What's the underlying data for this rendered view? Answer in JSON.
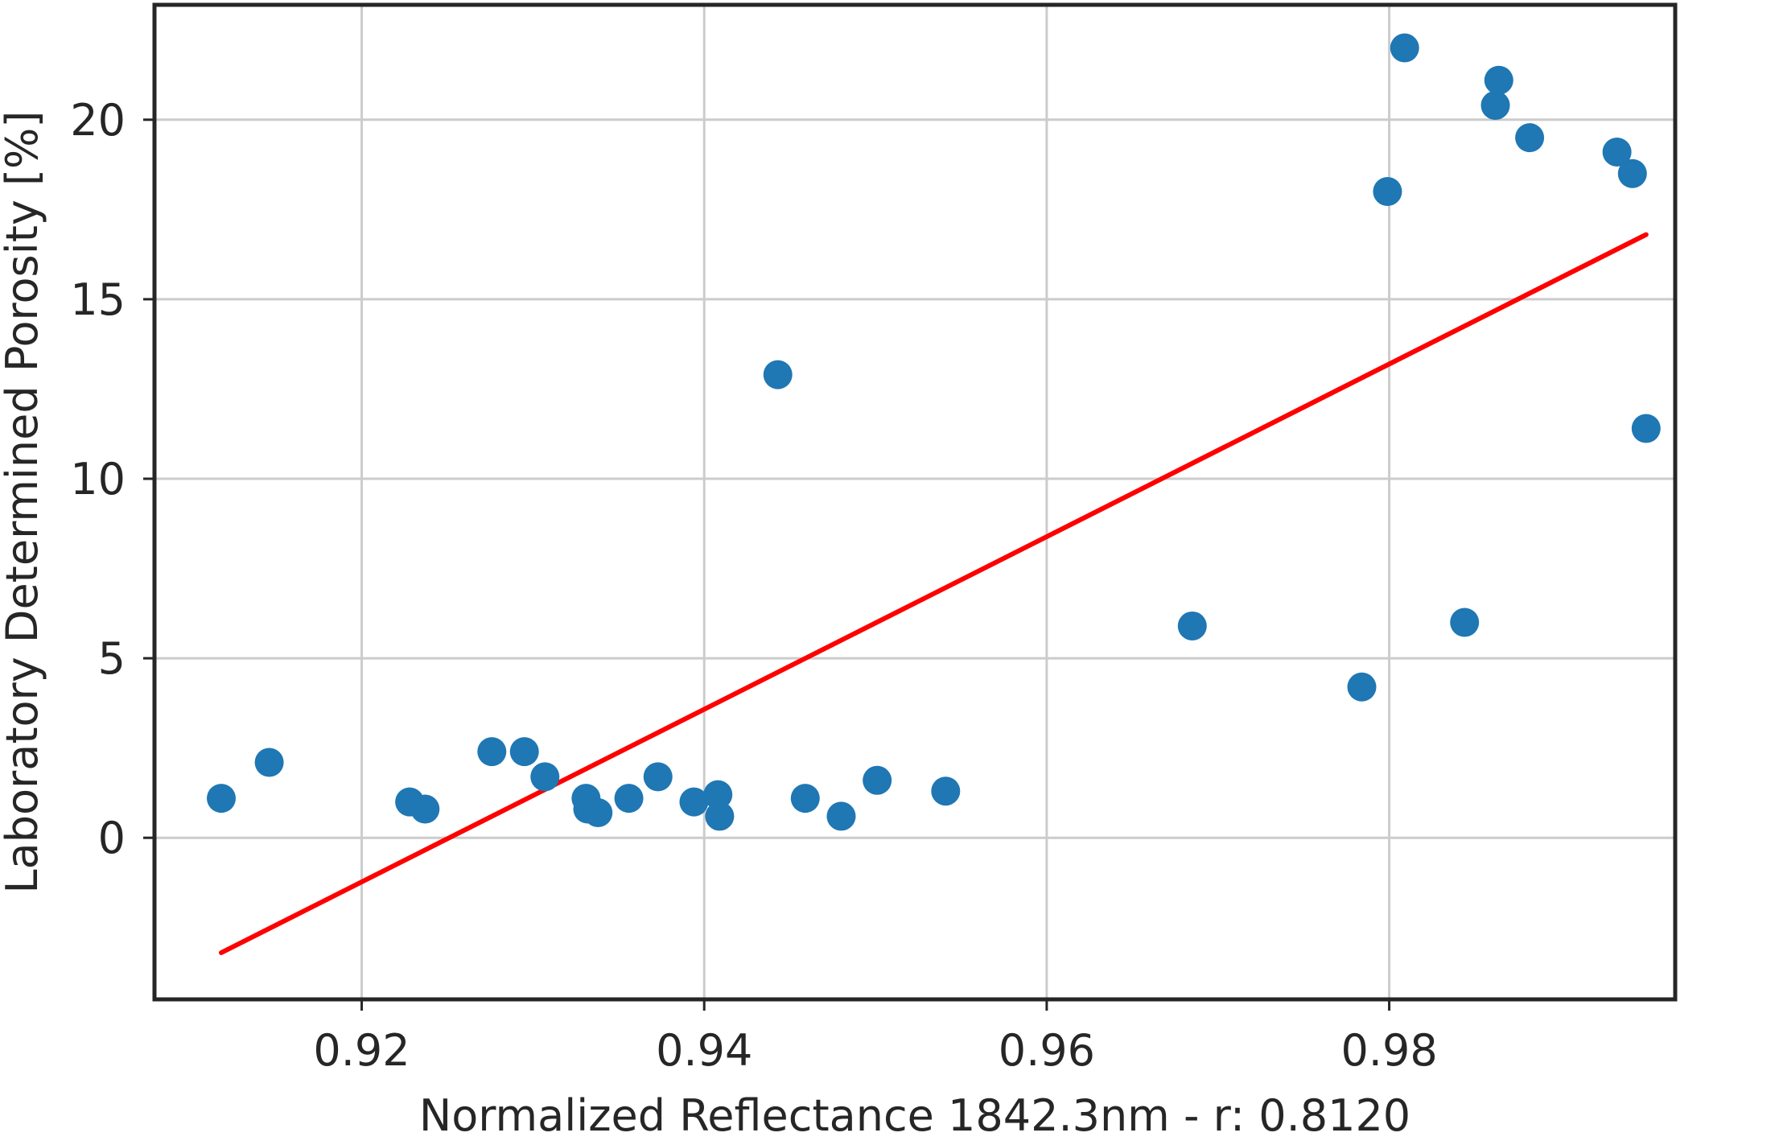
{
  "chart_data": {
    "type": "scatter",
    "title": "",
    "xlabel": "Normalized Reflectance 1842.3nm - r:   0.8120",
    "ylabel": "Laboratory Determined Porosity [%]",
    "xlim": [
      0.9079,
      0.9967
    ],
    "ylim": [
      -4.5,
      23.2
    ],
    "x_ticks": [
      0.92,
      0.94,
      0.96,
      0.98
    ],
    "x_tick_labels": [
      "0.92",
      "0.94",
      "0.96",
      "0.98"
    ],
    "y_ticks": [
      0,
      5,
      10,
      15,
      20
    ],
    "y_tick_labels": [
      "0",
      "5",
      "10",
      "15",
      "20"
    ],
    "grid": true,
    "legend": "none",
    "colors": {
      "points": "#1f77b4",
      "fit_line": "#ff0000",
      "grid": "#cccccc",
      "frame": "#262626"
    },
    "series": [
      {
        "kind": "scatter",
        "points": [
          {
            "x": 0.9118,
            "y": 1.1
          },
          {
            "x": 0.9146,
            "y": 2.1
          },
          {
            "x": 0.9228,
            "y": 1.0
          },
          {
            "x": 0.9237,
            "y": 0.8
          },
          {
            "x": 0.9276,
            "y": 2.4
          },
          {
            "x": 0.9295,
            "y": 2.4
          },
          {
            "x": 0.9307,
            "y": 1.7
          },
          {
            "x": 0.9331,
            "y": 1.1
          },
          {
            "x": 0.9332,
            "y": 0.8
          },
          {
            "x": 0.9338,
            "y": 0.7
          },
          {
            "x": 0.9356,
            "y": 1.1
          },
          {
            "x": 0.9373,
            "y": 1.7
          },
          {
            "x": 0.9394,
            "y": 1.0
          },
          {
            "x": 0.9408,
            "y": 1.2
          },
          {
            "x": 0.9409,
            "y": 0.6
          },
          {
            "x": 0.9443,
            "y": 12.9
          },
          {
            "x": 0.9459,
            "y": 1.1
          },
          {
            "x": 0.948,
            "y": 0.6
          },
          {
            "x": 0.9501,
            "y": 1.6
          },
          {
            "x": 0.9541,
            "y": 1.3
          },
          {
            "x": 0.9685,
            "y": 5.9
          },
          {
            "x": 0.9784,
            "y": 4.2
          },
          {
            "x": 0.9799,
            "y": 18.0
          },
          {
            "x": 0.9809,
            "y": 22.0
          },
          {
            "x": 0.9844,
            "y": 6.0
          },
          {
            "x": 0.9862,
            "y": 20.4
          },
          {
            "x": 0.9864,
            "y": 21.1
          },
          {
            "x": 0.9882,
            "y": 19.5
          },
          {
            "x": 0.9933,
            "y": 19.1
          },
          {
            "x": 0.9942,
            "y": 18.5
          },
          {
            "x": 0.995,
            "y": 11.4
          }
        ]
      },
      {
        "kind": "line",
        "points": [
          {
            "x": 0.9118,
            "y": -3.2
          },
          {
            "x": 0.995,
            "y": 16.8
          }
        ]
      }
    ]
  }
}
